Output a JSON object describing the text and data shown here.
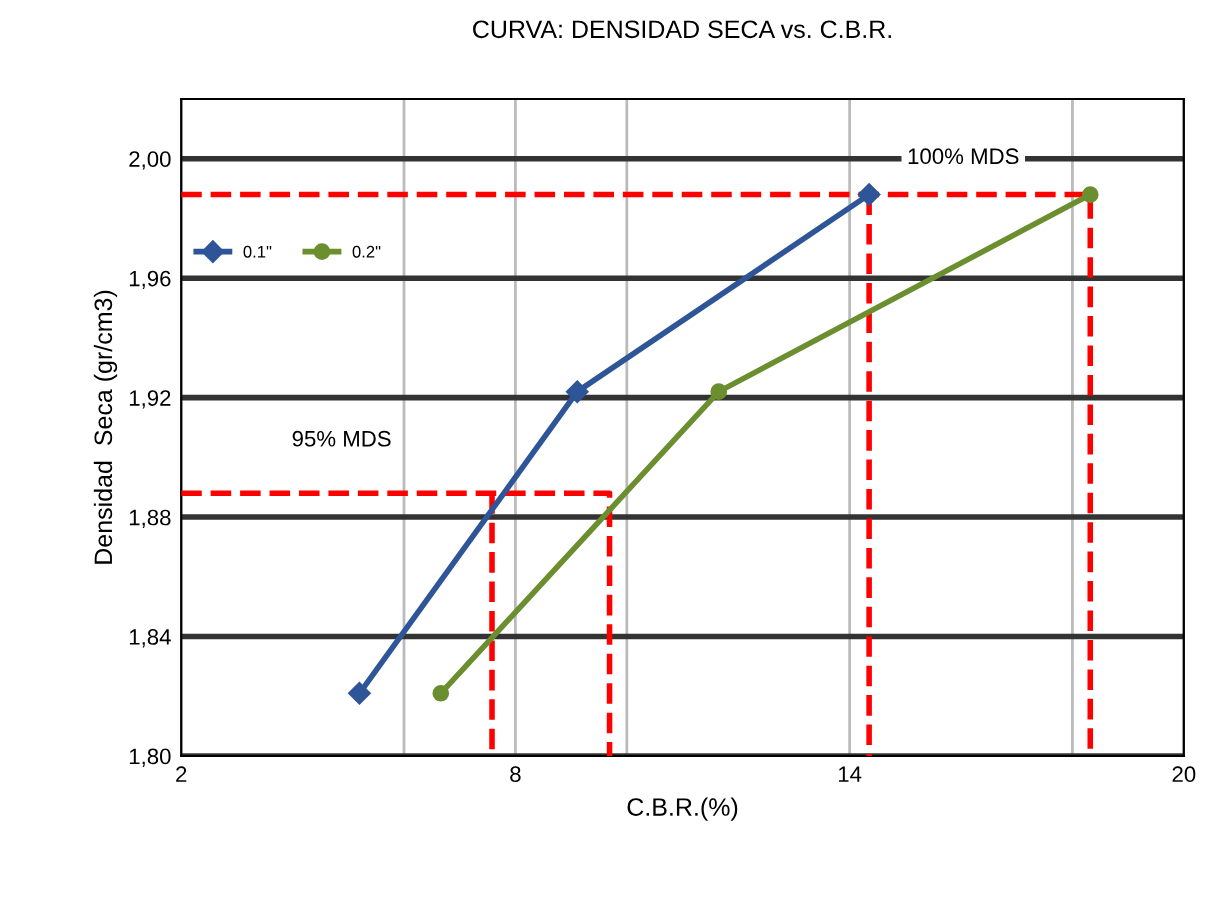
{
  "chart_data": {
    "type": "line",
    "title": "CURVA: DENSIDAD SECA vs. C.B.R.",
    "xlabel": "C.B.R.(%)",
    "ylabel": "Densidad  Seca (gr/cm3)",
    "xlim": [
      2,
      20
    ],
    "xticks": [
      2,
      {
        "value": 6,
        "label": null
      },
      8,
      {
        "value": 10,
        "label": null
      },
      14,
      {
        "value": 18,
        "label": null
      },
      20
    ],
    "ylim": [
      1.8,
      2.02
    ],
    "yticks": [
      {
        "value": 1.8,
        "label": "1,80"
      },
      {
        "value": 1.84,
        "label": "1,84"
      },
      {
        "value": 1.88,
        "label": "1,88"
      },
      {
        "value": 1.92,
        "label": "1,92"
      },
      {
        "value": 1.96,
        "label": "1,96"
      },
      {
        "value": 2.0,
        "label": "2,00"
      }
    ],
    "grid": true,
    "legend": "top left",
    "series": [
      {
        "x": [
          2,
          18.32,
          18.32
        ],
        "values": [
          1.988,
          1.988,
          1.8
        ],
        "color": "#ff0000",
        "line_style": "dashed",
        "marker": "none"
      },
      {
        "x": [
          14.35,
          14.35
        ],
        "values": [
          1.988,
          1.8
        ],
        "color": "#ff0000",
        "line_style": "dashed",
        "marker": "none"
      },
      {
        "x": [
          2,
          9.69,
          9.69
        ],
        "values": [
          1.888,
          1.888,
          1.8
        ],
        "color": "#ff0000",
        "line_style": "dashed",
        "marker": "none"
      },
      {
        "x": [
          7.58,
          7.58
        ],
        "values": [
          1.888,
          1.8
        ],
        "color": "#ff0000",
        "line_style": "dashed",
        "marker": "none"
      },
      {
        "name": "0.1\"",
        "x": [
          5.2,
          9.11,
          14.35
        ],
        "values": [
          1.821,
          1.922,
          1.988
        ],
        "color": "#2e5597",
        "line_style": "solid",
        "marker": "diamond"
      },
      {
        "name": "0.2\"",
        "x": [
          6.66,
          11.65,
          18.32
        ],
        "values": [
          1.821,
          1.922,
          1.988
        ],
        "color": "#6b8e2f",
        "line_style": "solid",
        "marker": "circle"
      }
    ],
    "annotations": [
      "100% MDS",
      "95% MDS"
    ]
  }
}
